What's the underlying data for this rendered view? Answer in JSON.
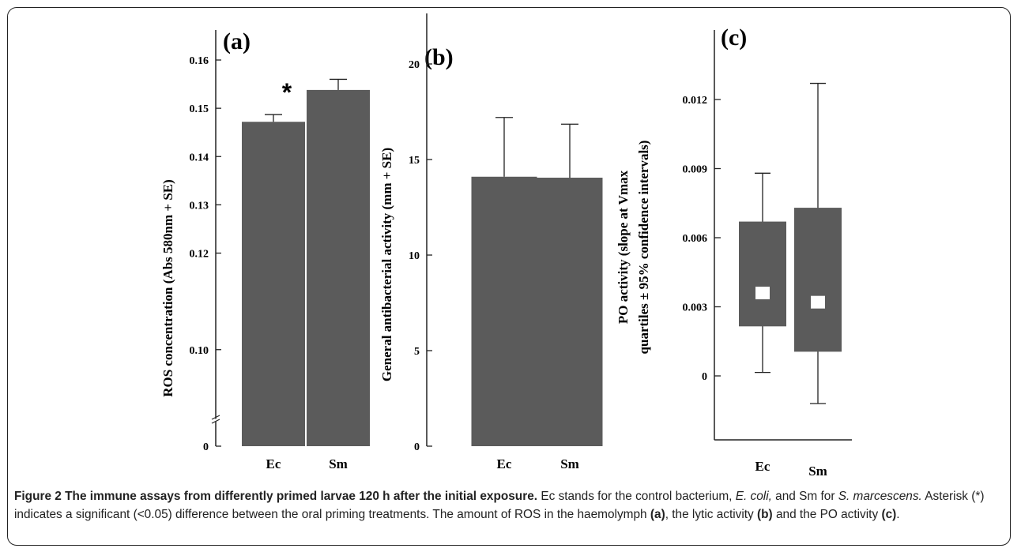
{
  "figure": {
    "caption": {
      "label": "Figure 2",
      "title": "The immune assays from differently primed larvae 120 h after the initial exposure.",
      "s1": "Ec stands for the control bacterium,",
      "ecoli": "E. coli,",
      "s2": "and Sm for",
      "smarc": "S. marcescens.",
      "s3": "Asterisk (*) indicates a significant (<0.05) difference between the oral priming treatments. The amount of ROS in the haemolymph",
      "ref_a": "(a)",
      "s4": ", the lytic activity",
      "ref_b": "(b)",
      "s5": "and the PO activity",
      "ref_c": "(c)",
      "s6": "."
    }
  },
  "colors": {
    "bar": "#5b5b5b",
    "axis": "#222222",
    "median": "#ffffff"
  },
  "chart_data": [
    {
      "panel": "(a)",
      "type": "bar",
      "categories": [
        "Ec",
        "Sm"
      ],
      "values": [
        0.1472,
        0.1538
      ],
      "errors": [
        0.0015,
        0.0022
      ],
      "ylabel": "ROS concentration (Abs 580nm + SE)",
      "ylim": [
        0.08,
        0.16
      ],
      "y_axis_break": true,
      "ticks": [
        {
          "v": 0.08,
          "label": "0"
        },
        {
          "v": 0.1,
          "label": "0.10"
        },
        {
          "v": 0.12,
          "label": "0.12"
        },
        {
          "v": 0.13,
          "label": "0.13"
        },
        {
          "v": 0.14,
          "label": "0.14"
        },
        {
          "v": 0.15,
          "label": "0.15"
        },
        {
          "v": 0.16,
          "label": "0.16"
        }
      ],
      "annotation": "*",
      "annotation_category": "Sm"
    },
    {
      "panel": "(b)",
      "type": "bar",
      "categories": [
        "Ec",
        "Sm"
      ],
      "values": [
        14.1,
        14.05
      ],
      "errors": [
        3.1,
        2.8
      ],
      "ylabel": "General antibacterial activity (mm + SE)",
      "ylim": [
        0,
        20
      ],
      "ticks": [
        {
          "v": 0,
          "label": "0"
        },
        {
          "v": 5,
          "label": "5"
        },
        {
          "v": 10,
          "label": "10"
        },
        {
          "v": 15,
          "label": "15"
        },
        {
          "v": 20,
          "label": "20"
        }
      ]
    },
    {
      "panel": "(c)",
      "type": "box",
      "categories": [
        "Ec",
        "Sm"
      ],
      "boxes": [
        {
          "whisker_low": 0.00015,
          "q1": 0.00215,
          "median": 0.0036,
          "q3": 0.0067,
          "whisker_high": 0.0088
        },
        {
          "whisker_low": -0.0012,
          "q1": 0.00105,
          "median": 0.0032,
          "q3": 0.0073,
          "whisker_high": 0.0127
        }
      ],
      "ylabel": "PO activity (slope at Vmax",
      "ylabel2": "quartiles ± 95% confidence intervals)",
      "ylim": [
        -0.0024,
        0.0155
      ],
      "ticks": [
        {
          "v": 0,
          "label": "0"
        },
        {
          "v": 0.003,
          "label": "0.003"
        },
        {
          "v": 0.006,
          "label": "0.006"
        },
        {
          "v": 0.009,
          "label": "0.009"
        },
        {
          "v": 0.012,
          "label": "0.012"
        }
      ]
    }
  ]
}
